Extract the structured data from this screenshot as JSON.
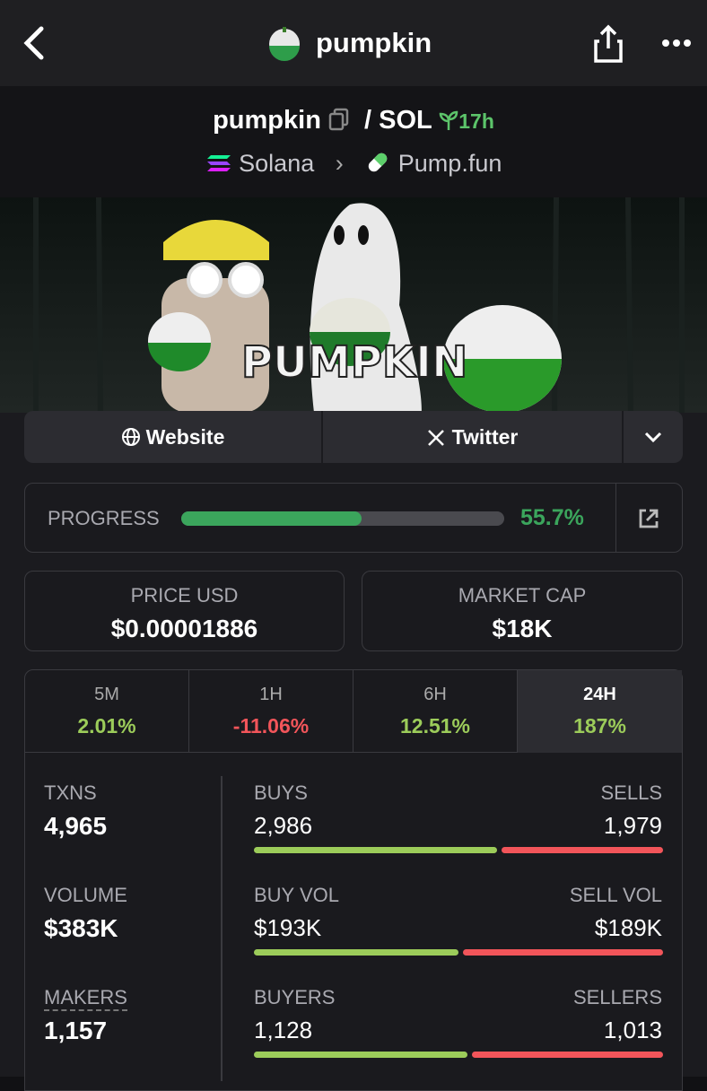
{
  "header": {
    "title": "pumpkin"
  },
  "pair": {
    "base": "pumpkin",
    "separator": "/",
    "quote": "SOL",
    "age": "17h",
    "chain": "Solana",
    "dex": "Pump.fun"
  },
  "banner": {
    "text": "PUMPKIN"
  },
  "links": [
    "Website",
    "Twitter"
  ],
  "progress": {
    "label": "PROGRESS",
    "value": 55.7,
    "value_label": "55.7%"
  },
  "price": {
    "label": "PRICE USD",
    "value": "$0.00001886"
  },
  "market_cap": {
    "label": "MARKET CAP",
    "value": "$18K"
  },
  "timeframes": [
    {
      "label": "5M",
      "change": "2.01%"
    },
    {
      "label": "1H",
      "change": "-11.06%"
    },
    {
      "label": "6H",
      "change": "12.51%"
    },
    {
      "label": "24H",
      "change": "187%"
    }
  ],
  "stats": [
    {
      "label": "TXNS",
      "value": "4,965"
    },
    {
      "label": "VOLUME",
      "value": "$383K"
    },
    {
      "label": "MAKERS",
      "value": "1,157"
    }
  ],
  "splits": [
    {
      "left_label": "BUYS",
      "left": {
        "value": 2986,
        "label": "2,986"
      },
      "right_label": "SELLS",
      "right": {
        "value": 1979,
        "label": "1,979"
      }
    },
    {
      "left_label": "BUY VOL",
      "left": {
        "value": 193000,
        "label": "$193K"
      },
      "right_label": "SELL VOL",
      "right": {
        "value": 189000,
        "label": "$189K"
      }
    },
    {
      "left_label": "BUYERS",
      "left": {
        "value": 1128,
        "label": "1,128"
      },
      "right_label": "SELLERS",
      "right": {
        "value": 1013,
        "label": "1,013"
      }
    }
  ]
}
